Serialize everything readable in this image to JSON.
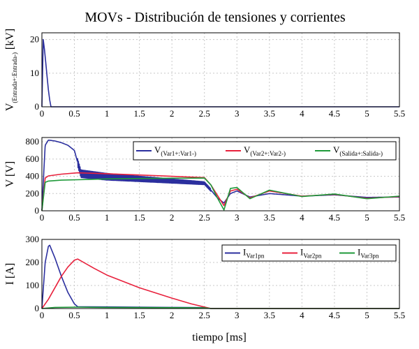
{
  "figure": {
    "title": "MOVs - Distribución de tensiones y corrientes",
    "xlabel": "tiempo [ms]"
  },
  "chart_data": [
    {
      "type": "line",
      "ylabel": "V",
      "ylabel_sub": "(Entrada+:Entrada-)",
      "ylabel_unit": "[kV]",
      "xlim": [
        0,
        5.5
      ],
      "ylim": [
        0,
        22
      ],
      "xticks": [
        "0",
        "0.5",
        "1",
        "1.5",
        "2",
        "2.5",
        "3",
        "3.5",
        "4",
        "4.5",
        "5",
        "5.5"
      ],
      "yticks": [
        "0",
        "10",
        "20"
      ],
      "grid": true,
      "legend": "none",
      "series": [
        {
          "color": "#2b2f9e",
          "x": [
            0,
            0.02,
            0.04,
            0.06,
            0.08,
            0.1,
            0.12,
            0.14,
            5.5
          ],
          "y": [
            0,
            20,
            17,
            13,
            9,
            5,
            2,
            0,
            0
          ]
        }
      ]
    },
    {
      "type": "line",
      "ylabel": "V [V]",
      "xlim": [
        0,
        5.5
      ],
      "ylim": [
        0,
        850
      ],
      "xticks": [
        "0",
        "0.5",
        "1",
        "1.5",
        "2",
        "2.5",
        "3",
        "3.5",
        "4",
        "4.5",
        "5",
        "5.5"
      ],
      "yticks": [
        "0",
        "200",
        "400",
        "600",
        "800"
      ],
      "grid": true,
      "legend": "top-right",
      "legend_entries": [
        {
          "main": "V",
          "sub": "(Var1+:Var1-)",
          "color": "#2b2f9e"
        },
        {
          "main": "V",
          "sub": "(Var2+:Var2-)",
          "color": "#e8213c"
        },
        {
          "main": "V",
          "sub": "(Salida+:Salida-)",
          "color": "#1f9a3a"
        }
      ],
      "series": [
        {
          "color": "#2b2f9e",
          "x": [
            0,
            0.05,
            0.1,
            0.2,
            0.3,
            0.4,
            0.5,
            0.55,
            0.6,
            1.0,
            1.5,
            2.0,
            2.5,
            2.6,
            2.7,
            2.8,
            2.9,
            3.0,
            3.2,
            3.5,
            4.0,
            4.5,
            5.0,
            5.5
          ],
          "y": [
            0,
            760,
            820,
            810,
            790,
            760,
            700,
            560,
            430,
            395,
            370,
            345,
            320,
            240,
            150,
            90,
            200,
            230,
            160,
            200,
            170,
            185,
            155,
            160
          ],
          "osc_start": 0.55,
          "osc_end": 2.6,
          "osc_amp": [
            90,
            30
          ]
        },
        {
          "color": "#e8213c",
          "x": [
            0,
            0.05,
            0.1,
            0.3,
            0.55,
            1.0,
            1.5,
            2.0,
            2.5,
            2.6,
            2.7,
            2.8,
            2.9,
            3.0,
            3.2,
            3.5,
            4.0,
            4.5,
            5.0,
            5.5
          ],
          "y": [
            0,
            380,
            405,
            425,
            440,
            430,
            415,
            400,
            385,
            300,
            180,
            60,
            230,
            250,
            150,
            230,
            170,
            190,
            145,
            165
          ]
        },
        {
          "color": "#1f9a3a",
          "x": [
            0,
            0.05,
            0.1,
            0.3,
            0.55,
            1.0,
            1.5,
            2.0,
            2.5,
            2.6,
            2.7,
            2.8,
            2.9,
            3.0,
            3.2,
            3.5,
            4.0,
            4.5,
            5.0,
            5.5
          ],
          "y": [
            0,
            330,
            345,
            355,
            360,
            370,
            375,
            378,
            380,
            300,
            150,
            10,
            260,
            270,
            140,
            240,
            165,
            195,
            140,
            170
          ]
        }
      ]
    },
    {
      "type": "line",
      "ylabel": "I [A]",
      "xlim": [
        0,
        5.5
      ],
      "ylim": [
        0,
        300
      ],
      "xticks": [
        "0",
        "0.5",
        "1",
        "1.5",
        "2",
        "2.5",
        "3",
        "3.5",
        "4",
        "4.5",
        "5",
        "5.5"
      ],
      "yticks": [
        "0",
        "100",
        "200",
        "300"
      ],
      "grid": true,
      "legend": "top-right",
      "legend_entries": [
        {
          "main": "I",
          "sub": "Var1pn",
          "color": "#2b2f9e"
        },
        {
          "main": "I",
          "sub": "Var2pn",
          "color": "#e8213c"
        },
        {
          "main": "I",
          "sub": "Var3pn",
          "color": "#1f9a3a"
        }
      ],
      "series": [
        {
          "color": "#2b2f9e",
          "x": [
            0,
            0.05,
            0.1,
            0.12,
            0.2,
            0.3,
            0.4,
            0.5,
            0.55,
            1.0,
            2.0,
            2.5,
            2.6,
            5.5
          ],
          "y": [
            0,
            200,
            270,
            275,
            220,
            140,
            70,
            20,
            8,
            7,
            5,
            4,
            0,
            0
          ]
        },
        {
          "color": "#e8213c",
          "x": [
            0,
            0.1,
            0.2,
            0.3,
            0.4,
            0.5,
            0.55,
            0.8,
            1.0,
            1.5,
            2.0,
            2.3,
            2.6,
            5.5
          ],
          "y": [
            0,
            40,
            90,
            140,
            180,
            210,
            215,
            175,
            145,
            90,
            45,
            20,
            0,
            0
          ]
        },
        {
          "color": "#1f9a3a",
          "x": [
            0,
            0.2,
            0.55,
            1.0,
            2.5,
            2.6,
            5.5
          ],
          "y": [
            0,
            5,
            6,
            5,
            3,
            0,
            0
          ]
        }
      ]
    }
  ]
}
